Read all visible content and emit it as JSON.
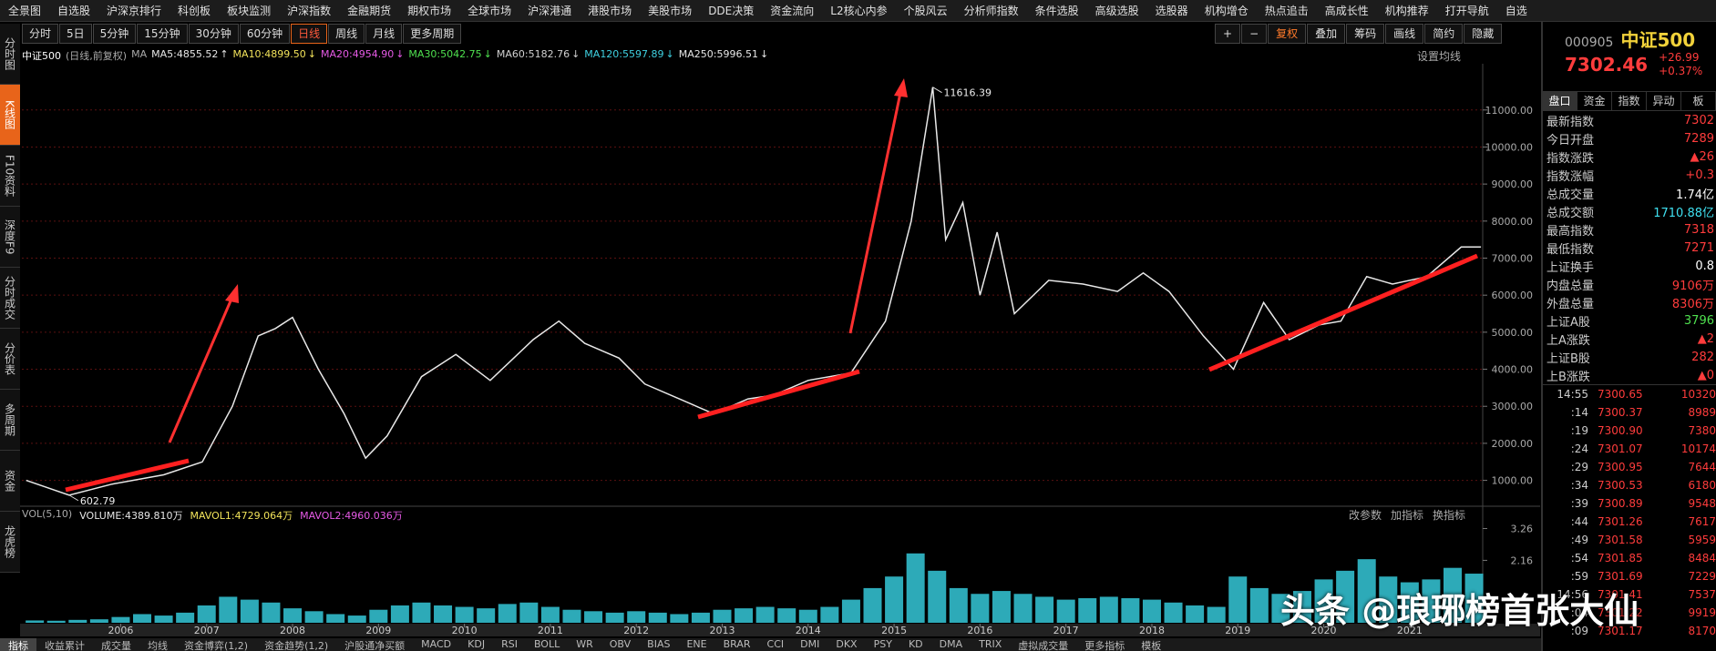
{
  "menu": [
    "全景图",
    "自选股",
    "沪深京排行",
    "科创板",
    "板块监测",
    "沪深指数",
    "金融期货",
    "期权市场",
    "全球市场",
    "沪深港通",
    "港股市场",
    "美股市场",
    "DDE决策",
    "资金流向",
    "L2核心内参",
    "个股风云",
    "分析师指数",
    "条件选股",
    "高级选股",
    "选股器",
    "机构增仓",
    "热点追击",
    "高成长性",
    "机构推荐",
    "打开导航",
    "自选"
  ],
  "side_tabs": [
    "分时图",
    "K线图",
    "F10资料",
    "深度F9",
    "分时成交",
    "分价表",
    "多周期",
    "资金",
    "龙虎榜"
  ],
  "periods": [
    "分时",
    "5日",
    "5分钟",
    "15分钟",
    "30分钟",
    "60分钟",
    "日线",
    "周线",
    "月线",
    "更多周期"
  ],
  "tools": [
    "+",
    "−",
    "复权",
    "叠加",
    "筹码",
    "画线",
    "简约",
    "隐藏"
  ],
  "chart_data": [
    {
      "type": "line",
      "title": "中证500",
      "subtitle": "(日线,前复权)",
      "ma_prefix": "MA",
      "ma_readouts": [
        {
          "text": "MA5:4855.52",
          "arrow": "↑",
          "color": "#e6e6e6"
        },
        {
          "text": "MA10:4899.50",
          "arrow": "↓",
          "color": "#f2e35a"
        },
        {
          "text": "MA20:4954.90",
          "arrow": "↓",
          "color": "#e65ae6"
        },
        {
          "text": "MA30:5042.75",
          "arrow": "↓",
          "color": "#4fe04f"
        },
        {
          "text": "MA60:5182.76",
          "arrow": "↓",
          "color": "#d0d0d0"
        },
        {
          "text": "MA120:5597.89",
          "arrow": "↓",
          "color": "#3fd0e0"
        },
        {
          "text": "MA250:5996.51",
          "arrow": "↓",
          "color": "#e6e6e6"
        }
      ],
      "settings_label": "设置均线",
      "x": [
        2004.9,
        2005.4,
        2005.9,
        2006.5,
        2006.95,
        2007.3,
        2007.6,
        2007.8,
        2008.0,
        2008.3,
        2008.6,
        2008.85,
        2009.1,
        2009.5,
        2009.9,
        2010.3,
        2010.8,
        2011.1,
        2011.4,
        2011.8,
        2012.1,
        2012.5,
        2012.9,
        2013.3,
        2013.6,
        2014.0,
        2014.5,
        2014.9,
        2015.2,
        2015.45,
        2015.6,
        2015.8,
        2016.0,
        2016.2,
        2016.4,
        2016.8,
        2017.2,
        2017.6,
        2017.9,
        2018.2,
        2018.6,
        2018.95,
        2019.3,
        2019.6,
        2019.95,
        2020.2,
        2020.5,
        2020.8,
        2021.2,
        2021.6,
        2021.83
      ],
      "values": [
        1000,
        602.79,
        900,
        1150,
        1500,
        3000,
        4900,
        5100,
        5400,
        4000,
        2800,
        1600,
        2200,
        3800,
        4400,
        3700,
        4800,
        5300,
        4700,
        4300,
        3600,
        3200,
        2800,
        3200,
        3300,
        3700,
        3900,
        5300,
        8000,
        11616.39,
        7500,
        8500,
        6000,
        7700,
        5500,
        6400,
        6300,
        6100,
        6600,
        6100,
        4900,
        4000,
        5800,
        4800,
        5200,
        5300,
        6500,
        6300,
        6500,
        7300,
        7302.46
      ],
      "color": "#e8e8e8",
      "xlim": [
        2004.85,
        2021.85
      ],
      "ylim": [
        400,
        12150
      ],
      "yticks": [
        {
          "value": 1000,
          "label": "1000.00"
        },
        {
          "value": 2000,
          "label": "2000.00"
        },
        {
          "value": 3000,
          "label": "3000.00"
        },
        {
          "value": 4000,
          "label": "4000.00"
        },
        {
          "value": 5000,
          "label": "5000.00"
        },
        {
          "value": 6000,
          "label": "6000.00"
        },
        {
          "value": 7000,
          "label": "7000.00"
        },
        {
          "value": 8000,
          "label": "8000.00"
        },
        {
          "value": 9000,
          "label": "9000.00"
        },
        {
          "value": 10000,
          "label": "10000.00"
        },
        {
          "value": 11000,
          "label": "11000.00"
        }
      ],
      "grid": true,
      "annotations": [
        {
          "x": 2015.45,
          "value": 11616.39
        },
        {
          "x": 2005.4,
          "value": 602.79
        }
      ]
    },
    {
      "type": "bar",
      "title": "VOL(5,10)",
      "readouts": [
        {
          "text": "VOLUME:4389.810万",
          "color": "#e6e6e6"
        },
        {
          "text": "MAVOL1:4729.064万",
          "color": "#f2e35a"
        },
        {
          "text": "MAVOL2:4960.036万",
          "color": "#e65ae6"
        }
      ],
      "panel_tools": [
        "改参数",
        "加指标",
        "换指标"
      ],
      "x": [
        2005.0,
        2005.25,
        2005.5,
        2005.75,
        2006.0,
        2006.25,
        2006.5,
        2006.75,
        2007.0,
        2007.25,
        2007.5,
        2007.75,
        2008.0,
        2008.25,
        2008.5,
        2008.75,
        2009.0,
        2009.25,
        2009.5,
        2009.75,
        2010.0,
        2010.25,
        2010.5,
        2010.75,
        2011.0,
        2011.25,
        2011.5,
        2011.75,
        2012.0,
        2012.25,
        2012.5,
        2012.75,
        2013.0,
        2013.25,
        2013.5,
        2013.75,
        2014.0,
        2014.25,
        2014.5,
        2014.75,
        2015.0,
        2015.25,
        2015.5,
        2015.75,
        2016.0,
        2016.25,
        2016.5,
        2016.75,
        2017.0,
        2017.25,
        2017.5,
        2017.75,
        2018.0,
        2018.25,
        2018.5,
        2018.75,
        2019.0,
        2019.25,
        2019.5,
        2019.75,
        2020.0,
        2020.25,
        2020.5,
        2020.75,
        2021.0,
        2021.25,
        2021.5,
        2021.75
      ],
      "values": [
        0.08,
        0.07,
        0.1,
        0.12,
        0.2,
        0.3,
        0.25,
        0.35,
        0.6,
        0.9,
        0.8,
        0.7,
        0.5,
        0.4,
        0.3,
        0.25,
        0.45,
        0.6,
        0.7,
        0.6,
        0.55,
        0.5,
        0.65,
        0.7,
        0.55,
        0.45,
        0.4,
        0.35,
        0.4,
        0.35,
        0.3,
        0.35,
        0.45,
        0.5,
        0.55,
        0.5,
        0.45,
        0.55,
        0.8,
        1.2,
        1.6,
        2.4,
        1.8,
        1.2,
        1.0,
        1.1,
        1.0,
        0.9,
        0.8,
        0.85,
        0.9,
        0.85,
        0.8,
        0.7,
        0.6,
        0.55,
        1.6,
        1.2,
        1.0,
        1.1,
        1.5,
        1.8,
        2.2,
        1.6,
        1.4,
        1.5,
        1.9,
        1.7
      ],
      "color": "#35c8d8",
      "xlim": [
        2004.85,
        2021.85
      ],
      "ylim": [
        0,
        3.78
      ],
      "yticks": [
        2.16,
        3.26
      ],
      "xticks": [
        2006,
        2007,
        2008,
        2009,
        2010,
        2011,
        2012,
        2013,
        2014,
        2015,
        2016,
        2017,
        2018,
        2019,
        2020,
        2021
      ]
    }
  ],
  "quote_panel": {
    "code": "000905",
    "name": "中证500",
    "price": "7302.46",
    "change": "+26.99",
    "pct": "+0.37%",
    "tabs": [
      "盘口",
      "资金",
      "指数",
      "异动",
      "板"
    ],
    "rows": [
      {
        "label": "最新指数",
        "value": "7302",
        "color": "#ff3c3c"
      },
      {
        "label": "今日开盘",
        "value": "7289",
        "color": "#ff3c3c"
      },
      {
        "label": "指数涨跌",
        "value": "▲26",
        "color": "#ff3c3c"
      },
      {
        "label": "指数涨幅",
        "value": "+0.3",
        "color": "#ff3c3c"
      },
      {
        "label": "总成交量",
        "value": "1.74亿",
        "color": "#ffffff"
      },
      {
        "label": "总成交额",
        "value": "1710.88亿",
        "color": "#3fe0f0"
      },
      {
        "label": "最高指数",
        "value": "7318",
        "color": "#ff3c3c"
      },
      {
        "label": "最低指数",
        "value": "7271",
        "color": "#ff3c3c"
      },
      {
        "label": "上证换手",
        "value": "0.8",
        "color": "#ffffff"
      },
      {
        "label": "内盘总量",
        "value": "9106万",
        "color": "#ff3c3c"
      },
      {
        "label": "外盘总量",
        "value": "8306万",
        "color": "#ff3c3c"
      },
      {
        "label": "上证A股",
        "value": "3796",
        "color": "#4fe04f"
      },
      {
        "label": "上A涨跌",
        "value": "▲2",
        "color": "#ff3c3c"
      },
      {
        "label": "上证B股",
        "value": "282",
        "color": "#ff3c3c"
      },
      {
        "label": "上B涨跌",
        "value": "▲0",
        "color": "#ff3c3c"
      }
    ],
    "ticks": [
      [
        "14:55",
        "7300.65",
        "10320"
      ],
      [
        ":14",
        "7300.37",
        "8989"
      ],
      [
        ":19",
        "7300.90",
        "7380"
      ],
      [
        ":24",
        "7301.07",
        "10174"
      ],
      [
        ":29",
        "7300.95",
        "7644"
      ],
      [
        ":34",
        "7300.53",
        "6180"
      ],
      [
        ":39",
        "7300.89",
        "9548"
      ],
      [
        ":44",
        "7301.26",
        "7617"
      ],
      [
        ":49",
        "7301.58",
        "5959"
      ],
      [
        ":54",
        "7301.85",
        "8484"
      ],
      [
        ":59",
        "7301.69",
        "7229"
      ],
      [
        "14:56",
        "7301.41",
        "7537"
      ],
      [
        ":04",
        "7301.22",
        "9919"
      ],
      [
        ":09",
        "7301.17",
        "8170"
      ]
    ]
  },
  "indicator_tabs": [
    "指标",
    "收益累计",
    "成交量",
    "均线",
    "资金博弈(1,2)",
    "资金趋势(1,2)",
    "沪股通净买额",
    "MACD",
    "KDJ",
    "RSI",
    "BOLL",
    "WR",
    "OBV",
    "BIAS",
    "ENE",
    "BRAR",
    "CCI",
    "DMI",
    "DKX",
    "PSY",
    "KD",
    "DMA",
    "TRIX",
    "虚拟成交量",
    "更多指标",
    "模板"
  ],
  "watermark": "头条 @琅琊榜首张大仙"
}
